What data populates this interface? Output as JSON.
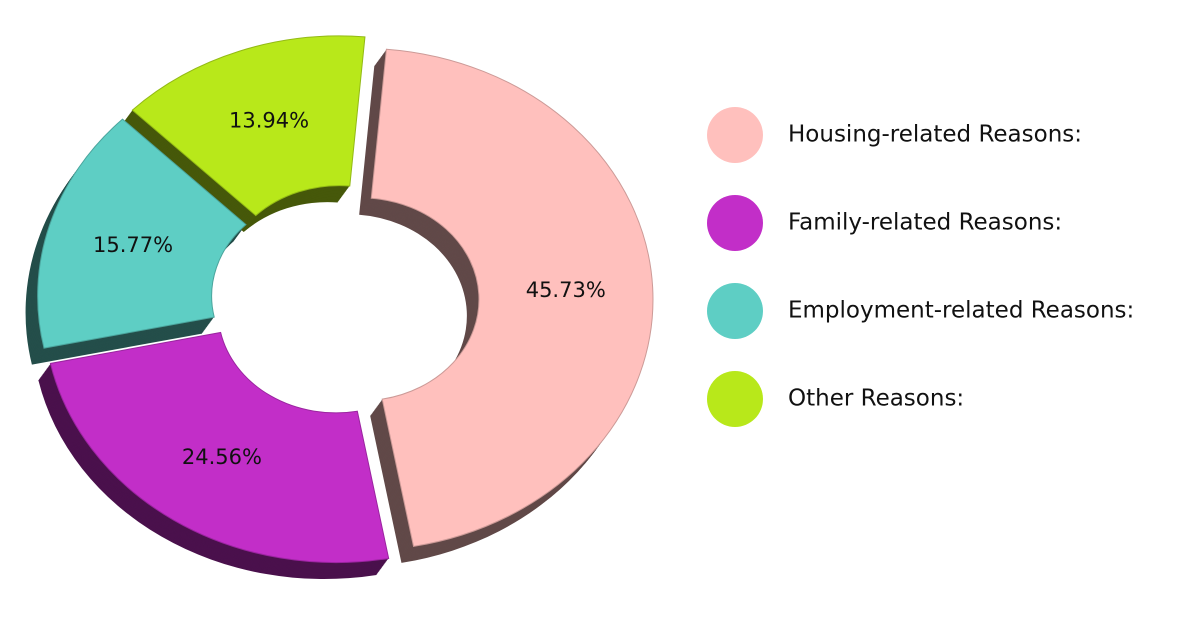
{
  "chart_data": {
    "type": "pie",
    "donut": true,
    "categories": [
      "Housing-related Reasons:",
      "Family-related Reasons:",
      "Employment-related Reasons:",
      "Other Reasons:"
    ],
    "values": [
      45.73,
      24.56,
      15.77,
      13.94
    ],
    "value_labels": [
      "45.73%",
      "24.56%",
      "15.77%",
      "13.94%"
    ],
    "colors": [
      "#ffc0bd",
      "#c22ec8",
      "#5ecec4",
      "#b8e81a"
    ],
    "legend": "right"
  }
}
